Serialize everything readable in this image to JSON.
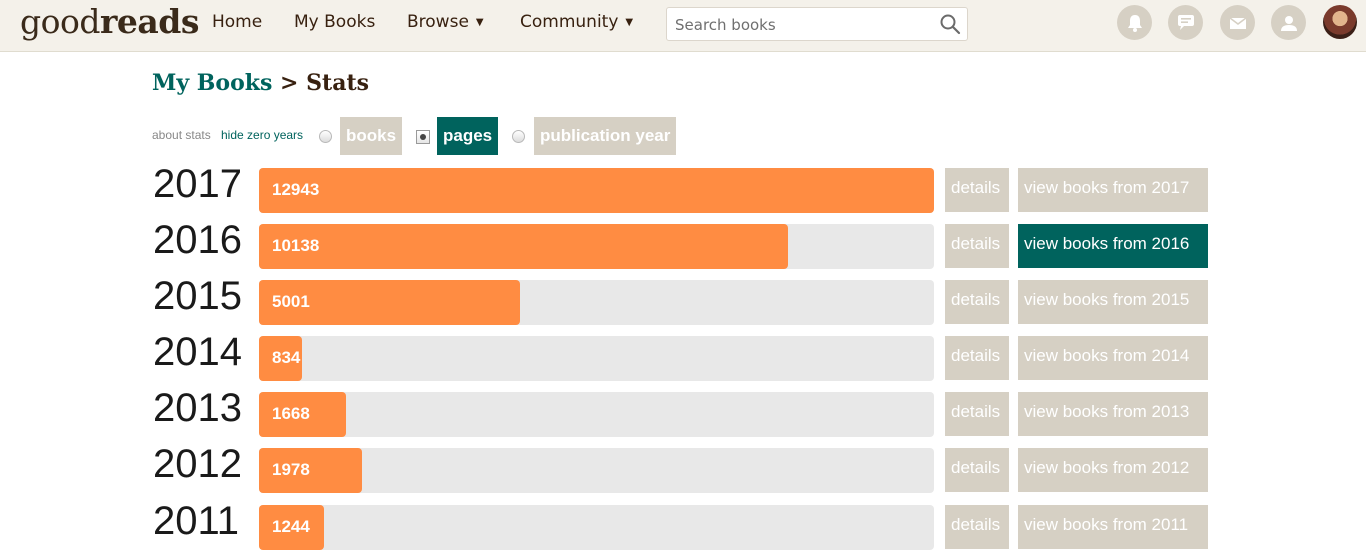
{
  "header": {
    "logo_left": "good",
    "logo_right": "reads",
    "nav": {
      "home": "Home",
      "my_books": "My Books",
      "browse": "Browse",
      "community": "Community"
    },
    "search": {
      "placeholder": "Search books"
    },
    "icons": [
      "bell-icon",
      "chat-icon",
      "mail-icon",
      "friends-icon"
    ],
    "colors": {
      "bar": "#f4f1ea",
      "icon_bg": "#d6d0c4"
    }
  },
  "page": {
    "breadcrumb_link": "My Books",
    "breadcrumb_separator": ">",
    "breadcrumb_current": "Stats"
  },
  "options": {
    "about_stats": "about stats",
    "hide_zero_years": "hide zero years",
    "tabs": [
      {
        "label": "books",
        "selected": false
      },
      {
        "label": "pages",
        "selected": true
      },
      {
        "label": "publication year",
        "selected": false
      }
    ]
  },
  "stats": {
    "max_value": 12943,
    "details_label": "details",
    "rows": [
      {
        "year": "2017",
        "value": 12943,
        "label": "12943",
        "view_label": "view books from 2017",
        "view_active": false
      },
      {
        "year": "2016",
        "value": 10138,
        "label": "10138",
        "view_label": "view books from 2016",
        "view_active": true
      },
      {
        "year": "2015",
        "value": 5001,
        "label": "5001",
        "view_label": "view books from 2015",
        "view_active": false
      },
      {
        "year": "2014",
        "value": 834,
        "label": "834",
        "view_label": "view books from 2014",
        "view_active": false
      },
      {
        "year": "2013",
        "value": 1668,
        "label": "1668",
        "view_label": "view books from 2013",
        "view_active": false
      },
      {
        "year": "2012",
        "value": 1978,
        "label": "1978",
        "view_label": "view books from 2012",
        "view_active": false
      },
      {
        "year": "2011",
        "value": 1244,
        "label": "1244",
        "view_label": "view books from 2011",
        "view_active": false
      }
    ],
    "colors": {
      "bar_fill": "#ff8c42",
      "track": "#e8e8e8",
      "button": "#d6d0c4",
      "button_active": "#00635d"
    }
  }
}
